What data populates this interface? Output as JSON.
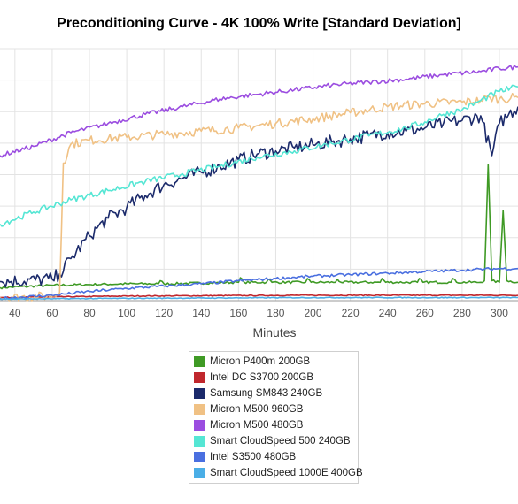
{
  "title": "Preconditioning Curve - 4K 100% Write [Standard Deviation]",
  "chart_data": {
    "type": "line",
    "title": "Preconditioning Curve - 4K 100% Write [Standard Deviation]",
    "xlabel": "Minutes",
    "ylabel": "",
    "x_ticks": [
      "40",
      "60",
      "80",
      "100",
      "120",
      "140",
      "160",
      "180",
      "200",
      "220",
      "240",
      "260",
      "280",
      "300"
    ],
    "xlim": [
      32,
      310
    ],
    "grid": true,
    "legend_position": "bottom",
    "series": [
      {
        "name": "Micron P400m 200GB",
        "color": "#3f9a25",
        "points": [
          [
            32,
            17
          ],
          [
            60,
            20
          ],
          [
            80,
            21
          ],
          [
            100,
            22
          ],
          [
            117,
            22
          ],
          [
            118,
            26
          ],
          [
            120,
            22
          ],
          [
            160,
            24
          ],
          [
            161,
            30
          ],
          [
            163,
            24
          ],
          [
            175,
            24
          ],
          [
            176,
            28
          ],
          [
            178,
            24
          ],
          [
            196,
            24
          ],
          [
            197,
            29
          ],
          [
            199,
            24
          ],
          [
            212,
            24
          ],
          [
            213,
            28
          ],
          [
            215,
            24
          ],
          [
            236,
            24
          ],
          [
            237,
            29
          ],
          [
            239,
            24
          ],
          [
            256,
            24
          ],
          [
            257,
            29
          ],
          [
            259,
            24
          ],
          [
            274,
            24
          ],
          [
            275,
            29
          ],
          [
            277,
            24
          ],
          [
            290,
            24
          ],
          [
            292,
            26
          ],
          [
            294,
            178
          ],
          [
            296,
            26
          ],
          [
            300,
            24
          ],
          [
            302,
            118
          ],
          [
            304,
            26
          ],
          [
            310,
            24
          ]
        ]
      },
      {
        "name": "Intel DC S3700 200GB",
        "color": "#c0272d",
        "points": [
          [
            32,
            4
          ],
          [
            100,
            6
          ],
          [
            200,
            7
          ],
          [
            310,
            7
          ]
        ]
      },
      {
        "name": "Samsung SM843 240GB",
        "color": "#1b2a6b",
        "points": [
          [
            32,
            25
          ],
          [
            60,
            28
          ],
          [
            64,
            35
          ],
          [
            70,
            55
          ],
          [
            80,
            85
          ],
          [
            90,
            108
          ],
          [
            100,
            122
          ],
          [
            110,
            138
          ],
          [
            120,
            152
          ],
          [
            130,
            160
          ],
          [
            140,
            168
          ],
          [
            150,
            176
          ],
          [
            160,
            184
          ],
          [
            170,
            192
          ],
          [
            180,
            196
          ],
          [
            190,
            200
          ],
          [
            200,
            204
          ],
          [
            210,
            208
          ],
          [
            220,
            212
          ],
          [
            230,
            216
          ],
          [
            240,
            220
          ],
          [
            250,
            222
          ],
          [
            260,
            226
          ],
          [
            270,
            232
          ],
          [
            280,
            236
          ],
          [
            290,
            242
          ],
          [
            296,
            190
          ],
          [
            300,
            232
          ],
          [
            305,
            244
          ],
          [
            310,
            254
          ]
        ]
      },
      {
        "name": "Micron M500 960GB",
        "color": "#f0c184",
        "points": [
          [
            32,
            4
          ],
          [
            60,
            6
          ],
          [
            64,
            10
          ],
          [
            66,
            180
          ],
          [
            70,
            205
          ],
          [
            80,
            210
          ],
          [
            100,
            214
          ],
          [
            120,
            218
          ],
          [
            140,
            222
          ],
          [
            160,
            226
          ],
          [
            180,
            232
          ],
          [
            200,
            238
          ],
          [
            220,
            246
          ],
          [
            240,
            254
          ],
          [
            260,
            258
          ],
          [
            280,
            260
          ],
          [
            290,
            262
          ],
          [
            295,
            266
          ],
          [
            300,
            264
          ],
          [
            310,
            266
          ]
        ]
      },
      {
        "name": "Micron M500 480GB",
        "color": "#9b4de0",
        "points": [
          [
            32,
            190
          ],
          [
            50,
            202
          ],
          [
            70,
            220
          ],
          [
            90,
            232
          ],
          [
            110,
            244
          ],
          [
            130,
            254
          ],
          [
            150,
            264
          ],
          [
            170,
            270
          ],
          [
            190,
            276
          ],
          [
            210,
            282
          ],
          [
            230,
            286
          ],
          [
            250,
            290
          ],
          [
            270,
            296
          ],
          [
            290,
            300
          ],
          [
            300,
            304
          ],
          [
            310,
            306
          ]
        ]
      },
      {
        "name": "Smart CloudSpeed 500 240GB",
        "color": "#55e6d4",
        "points": [
          [
            32,
            100
          ],
          [
            50,
            116
          ],
          [
            70,
            132
          ],
          [
            90,
            144
          ],
          [
            110,
            156
          ],
          [
            130,
            166
          ],
          [
            150,
            176
          ],
          [
            170,
            188
          ],
          [
            190,
            196
          ],
          [
            210,
            206
          ],
          [
            230,
            216
          ],
          [
            250,
            226
          ],
          [
            260,
            234
          ],
          [
            270,
            244
          ],
          [
            280,
            250
          ],
          [
            290,
            262
          ],
          [
            300,
            274
          ],
          [
            310,
            280
          ]
        ]
      },
      {
        "name": "Intel S3500 480GB",
        "color": "#4a6fe0",
        "points": [
          [
            32,
            3
          ],
          [
            60,
            7
          ],
          [
            80,
            12
          ],
          [
            100,
            16
          ],
          [
            120,
            19
          ],
          [
            140,
            22
          ],
          [
            160,
            26
          ],
          [
            180,
            29
          ],
          [
            200,
            32
          ],
          [
            220,
            34
          ],
          [
            240,
            36
          ],
          [
            260,
            38
          ],
          [
            280,
            40
          ],
          [
            300,
            42
          ],
          [
            310,
            42
          ]
        ]
      },
      {
        "name": "Smart CloudSpeed 1000E 400GB",
        "color": "#4aaee6",
        "points": [
          [
            32,
            2
          ],
          [
            100,
            3
          ],
          [
            200,
            4
          ],
          [
            310,
            4
          ]
        ]
      }
    ]
  }
}
